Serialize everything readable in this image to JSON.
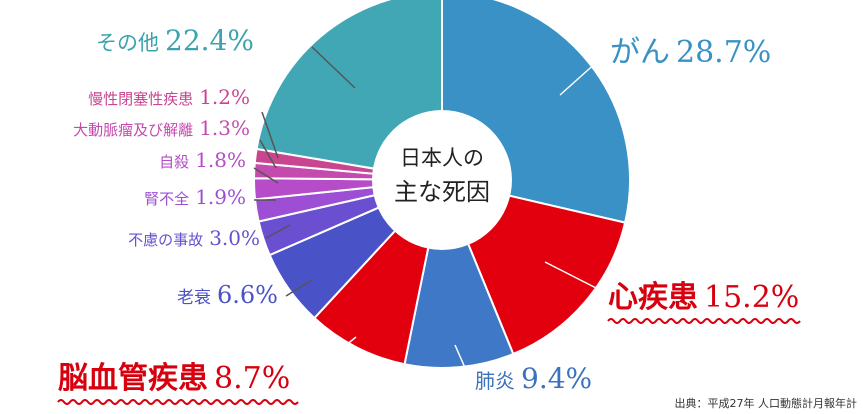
{
  "chart_data": {
    "type": "pie",
    "title_lines": [
      "日本人の",
      "主な死因"
    ],
    "slices": [
      {
        "label": "がん",
        "value": 28.7,
        "text": "28.7%",
        "color": "#3991c5",
        "label_color": "#3991c5",
        "emphasis": false
      },
      {
        "label": "心疾患",
        "value": 15.2,
        "text": "15.2%",
        "color": "#e3000e",
        "label_color": "#d7000f",
        "emphasis": true
      },
      {
        "label": "肺炎",
        "value": 9.4,
        "text": "9.4%",
        "color": "#3f78c6",
        "label_color": "#3a72c0",
        "emphasis": false
      },
      {
        "label": "脳血管疾患",
        "value": 8.7,
        "text": "8.7%",
        "color": "#e3000e",
        "label_color": "#d7000f",
        "emphasis": true
      },
      {
        "label": "老衰",
        "value": 6.6,
        "text": "6.6%",
        "color": "#4a52c8",
        "label_color": "#4a52c8",
        "emphasis": false
      },
      {
        "label": "不慮の事故",
        "value": 3.0,
        "text": "3.0%",
        "color": "#6a4fd0",
        "label_color": "#6a4fd0",
        "emphasis": false
      },
      {
        "label": "腎不全",
        "value": 1.9,
        "text": "1.9%",
        "color": "#9c4fd4",
        "label_color": "#9c4fd4",
        "emphasis": false
      },
      {
        "label": "自殺",
        "value": 1.8,
        "text": "1.8%",
        "color": "#b64cc8",
        "label_color": "#b64cc8",
        "emphasis": false
      },
      {
        "label": "大動脈瘤及び解離",
        "value": 1.3,
        "text": "1.3%",
        "color": "#c44aae",
        "label_color": "#c44aae",
        "emphasis": false
      },
      {
        "label": "慢性閉塞性疾患",
        "value": 1.2,
        "text": "1.2%",
        "color": "#c94590",
        "label_color": "#c94590",
        "emphasis": false
      },
      {
        "label": "その他",
        "value": 22.4,
        "text": "22.4%",
        "color": "#41a7b4",
        "label_color": "#3aa3ad",
        "emphasis": false
      }
    ]
  },
  "source": "出典：平成27年 人口動態計月報年計"
}
